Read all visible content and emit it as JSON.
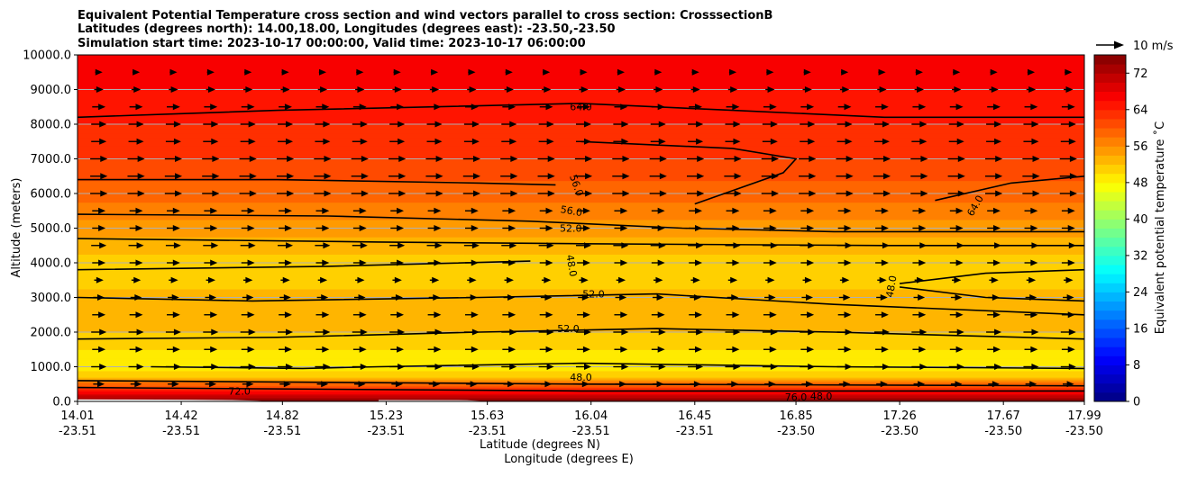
{
  "chart_data": {
    "type": "heatmap",
    "title_lines": [
      "Equivalent Potential Temperature cross section and wind vectors parallel to cross section: CrosssectionB",
      "Latitudes (degrees north): 14.00,18.00, Longitudes (degrees east): -23.50,-23.50",
      "Simulation start time: 2023-10-17 00:00:00, Valid time: 2023-10-17 06:00:00"
    ],
    "ylabel": "Altitude (meters)",
    "xlabel_lat": "Latitude (degrees N)",
    "xlabel_lon": "Longitude (degrees E)",
    "ylim": [
      0,
      10000
    ],
    "y_ticks": [
      0,
      1000,
      2000,
      3000,
      4000,
      5000,
      6000,
      7000,
      8000,
      9000,
      10000
    ],
    "y_tick_labels": [
      "0.0",
      "1000.0",
      "2000.0",
      "3000.0",
      "4000.0",
      "5000.0",
      "6000.0",
      "7000.0",
      "8000.0",
      "9000.0",
      "10000.0"
    ],
    "xlim": [
      14.01,
      17.99
    ],
    "x_tick_lat": [
      "14.01",
      "14.42",
      "14.82",
      "15.23",
      "15.63",
      "16.04",
      "16.45",
      "16.85",
      "17.26",
      "17.67",
      "17.99"
    ],
    "x_tick_lon": [
      "-23.51",
      "-23.51",
      "-23.51",
      "-23.51",
      "-23.51",
      "-23.51",
      "-23.51",
      "-23.50",
      "-23.50",
      "-23.50",
      "-23.50"
    ],
    "grid": "horizontal",
    "colorbar": {
      "label": "Equivalent potential temperature ˚C",
      "range": [
        0,
        76
      ],
      "ticks": [
        0,
        8,
        16,
        24,
        32,
        40,
        48,
        56,
        64,
        72
      ],
      "colormap": "jet"
    },
    "quiver_key": {
      "label": "10 m/s"
    },
    "contour_labels": [
      "64.0",
      "56.0",
      "56.0",
      "52.0",
      "48.0",
      "52.0",
      "52.0",
      "48.0",
      "48.0",
      "64.0",
      "48.0",
      "76.0",
      "72.0"
    ],
    "theta_e_profile": [
      {
        "z": 0,
        "value": 76
      },
      {
        "z": 300,
        "value": 66
      },
      {
        "z": 700,
        "value": 52
      },
      {
        "z": 1000,
        "value": 49
      },
      {
        "z": 1500,
        "value": 50
      },
      {
        "z": 2000,
        "value": 52
      },
      {
        "z": 3000,
        "value": 53
      },
      {
        "z": 3500,
        "value": 51
      },
      {
        "z": 4000,
        "value": 51
      },
      {
        "z": 5000,
        "value": 55
      },
      {
        "z": 6000,
        "value": 59
      },
      {
        "z": 7000,
        "value": 62
      },
      {
        "z": 8000,
        "value": 64
      },
      {
        "z": 9000,
        "value": 66
      },
      {
        "z": 10000,
        "value": 68
      }
    ],
    "wind_rows_m": [
      0,
      500,
      1000,
      1500,
      2000,
      2500,
      3000,
      3500,
      4000,
      4500,
      5000,
      5500,
      6000,
      6500,
      7000,
      7500,
      8000,
      8500,
      9000,
      9500
    ],
    "wind_speed_ms": [
      0,
      3,
      5,
      4,
      5,
      4,
      3,
      2,
      4,
      5,
      4,
      4,
      6,
      6,
      6,
      5,
      5,
      4,
      2,
      1
    ]
  }
}
